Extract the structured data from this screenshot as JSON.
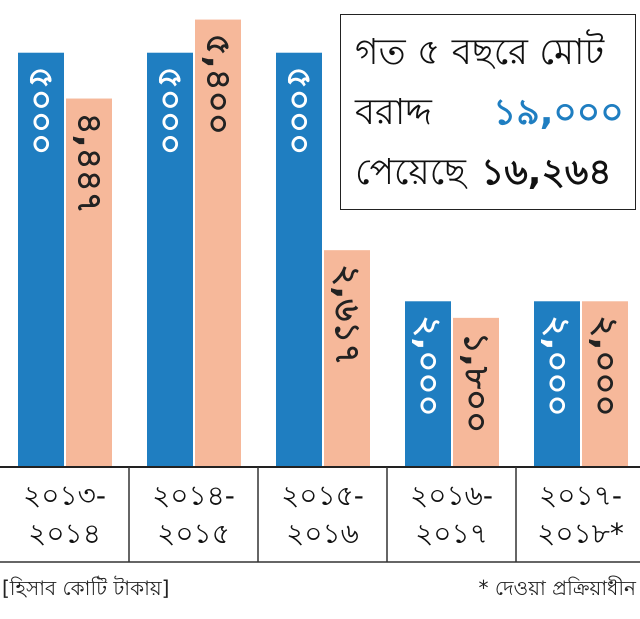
{
  "chart_data": {
    "type": "bar",
    "categories": [
      [
        "২০১৩-",
        "২০১৪"
      ],
      [
        "২০১৪-",
        "২০১৫"
      ],
      [
        "২০১৫-",
        "২০১৬"
      ],
      [
        "২০১৬-",
        "২০১৭"
      ],
      [
        "২০১৭-",
        "২০১৮*"
      ]
    ],
    "series": [
      {
        "values": [
          5000,
          5000,
          5000,
          2000,
          2000
        ],
        "labels": [
          "৫০০০",
          "৫০০০",
          "৫০০০",
          "২,০০০",
          "২,০০০"
        ],
        "color": "#1f7ec1"
      },
      {
        "values": [
          4447,
          5400,
          2617,
          1800,
          2000
        ],
        "labels": [
          "৪,৪৪৭",
          "৫,৪০০",
          "২,৬১৭",
          "১,৮০০",
          "২,০০০"
        ],
        "color": "#f6b89a"
      }
    ],
    "ylim": [
      0,
      5600
    ],
    "grid": false,
    "legend": "none"
  },
  "summary": {
    "line1": "গত ৫ বছরে মোট",
    "allocated_label": "বরাদ্দ",
    "allocated_value": "১৯,০০০",
    "received_label": "পেয়েছে",
    "received_value": "১৬,২৬৪",
    "allocated_color": "#1f7ec1"
  },
  "footer": {
    "unit_note": "[হিসাব কোটি টাকায়]",
    "asterisk_note": "* দেওয়া প্রক্রিয়াধীন"
  }
}
